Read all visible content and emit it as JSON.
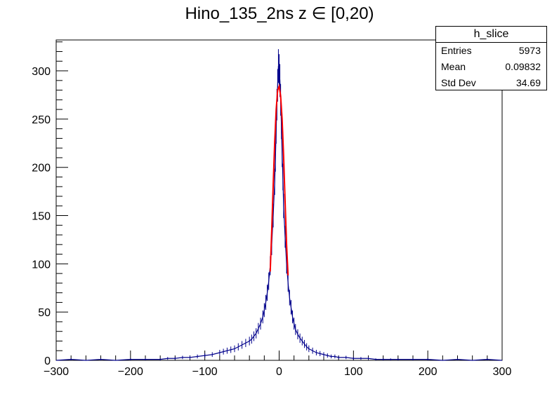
{
  "title": "Hino_135_2ns z  ∈ [0,20)",
  "stats": {
    "name": "h_slice",
    "rows": [
      {
        "label": "Entries",
        "value": "5973"
      },
      {
        "label": "Mean",
        "value": "0.09832"
      },
      {
        "label": "Std Dev",
        "value": "34.69"
      }
    ]
  },
  "chart_data": {
    "type": "histogram",
    "title": "Hino_135_2ns z  ∈ [0,20)",
    "xlabel": "",
    "ylabel": "",
    "xlim": [
      -300,
      300
    ],
    "ylim": [
      0,
      332
    ],
    "x_ticks": [
      -300,
      -200,
      -100,
      0,
      100,
      200,
      300
    ],
    "x_tick_labels": [
      "−300",
      "−200",
      "−100",
      "0",
      "100",
      "200",
      "300"
    ],
    "y_ticks": [
      0,
      50,
      100,
      150,
      200,
      250,
      300
    ],
    "y_tick_labels": [
      "0",
      "50",
      "100",
      "150",
      "200",
      "250",
      "300"
    ],
    "grid": false,
    "series": [
      {
        "style": "histogram with error bars",
        "color": "#00008b",
        "bin_width": 1,
        "x": [
          -300,
          -280,
          -260,
          -240,
          -220,
          -200,
          -180,
          -160,
          -150,
          -140,
          -130,
          -120,
          -110,
          -100,
          -90,
          -80,
          -75,
          -70,
          -65,
          -60,
          -55,
          -50,
          -45,
          -40,
          -37,
          -34,
          -31,
          -28,
          -25,
          -22,
          -20,
          -18,
          -16,
          -14,
          -12,
          -10,
          -8,
          -6,
          -5,
          -4,
          -3,
          -2,
          -1,
          0,
          1,
          2,
          3,
          4,
          5,
          6,
          8,
          10,
          12,
          14,
          16,
          18,
          20,
          22,
          25,
          28,
          31,
          34,
          37,
          40,
          45,
          50,
          55,
          60,
          65,
          70,
          75,
          80,
          90,
          100,
          110,
          120,
          130,
          140,
          150,
          160,
          180,
          200,
          220,
          240,
          260,
          280,
          300
        ],
        "y": [
          0,
          1,
          0,
          1,
          0,
          1,
          1,
          1,
          2,
          2,
          3,
          3,
          4,
          5,
          6,
          8,
          9,
          10,
          11,
          12,
          14,
          16,
          18,
          20,
          22,
          25,
          28,
          33,
          38,
          45,
          52,
          60,
          70,
          82,
          98,
          120,
          150,
          185,
          210,
          240,
          265,
          285,
          305,
          300,
          290,
          270,
          245,
          215,
          190,
          160,
          128,
          100,
          80,
          65,
          55,
          45,
          38,
          32,
          27,
          23,
          20,
          17,
          14,
          12,
          10,
          8,
          7,
          6,
          5,
          4,
          4,
          3,
          3,
          2,
          2,
          2,
          1,
          1,
          1,
          1,
          1,
          1,
          0,
          1,
          0,
          1,
          0
        ]
      },
      {
        "style": "fit curve",
        "color": "#ff0000",
        "x": [
          -12,
          -10,
          -8,
          -6,
          -4,
          -2,
          0,
          2,
          4,
          6,
          8,
          10,
          12
        ],
        "y": [
          92,
          135,
          182,
          226,
          260,
          280,
          284,
          274,
          250,
          212,
          165,
          120,
          88
        ]
      }
    ]
  }
}
